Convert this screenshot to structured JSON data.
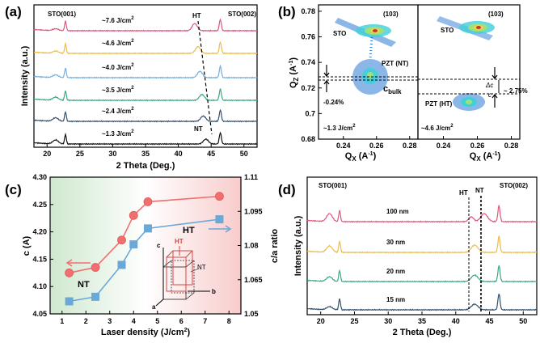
{
  "chart_data": [
    {
      "panel": "(a)",
      "type": "line",
      "xlabel": "2 Theta (Deg.)",
      "ylabel": "Intensity (a.u.)",
      "xlim": [
        18,
        52
      ],
      "xticks": [
        20,
        25,
        30,
        35,
        40,
        45,
        50
      ],
      "series": [
        {
          "name": "~1.3 J/cm2",
          "label": "~1.3 J/cm",
          "color": "#111111"
        },
        {
          "name": "~2.4 J/cm2",
          "label": "~2.4 J/cm",
          "color": "#33506b"
        },
        {
          "name": "~3.5 J/cm2",
          "label": "~3.5 J/cm",
          "color": "#3aa889"
        },
        {
          "name": "~4.0 J/cm2",
          "label": "~4.0 J/cm",
          "color": "#73aede"
        },
        {
          "name": "~4.6 J/cm2",
          "label": "~4.6 J/cm",
          "color": "#eebc4a"
        },
        {
          "name": "~7.6 J/cm2",
          "label": "~7.6 J/cm",
          "color": "#e0577a"
        }
      ],
      "annotations": {
        "sto001": "STO(001)",
        "sto002": "STO(002)",
        "ht": "HT",
        "nt": "NT"
      }
    },
    {
      "panel": "(b)",
      "type": "heatmap",
      "xlabel": "Q",
      "xlabel_sub": "X",
      "xlabel_unit": "(A",
      "xlabel_sup": "-1",
      "ylabel": "Q",
      "ylabel_sub": "Z",
      "ylabel_unit": "(A",
      "ylabel_sup": "-1",
      "ylim": [
        0.68,
        0.785
      ],
      "yticks": [
        0.68,
        0.7,
        0.72,
        0.74,
        0.76,
        0.78
      ],
      "xlim": [
        0.225,
        0.285
      ],
      "xticks": [
        0.24,
        0.26,
        0.28
      ],
      "left": {
        "label": "(103)",
        "sto": "STO",
        "pzt": "PZT (NT)",
        "cbulk": "c",
        "cbulk_sub": "bulk",
        "strain": "-0.24%",
        "fluence": "~1.3 J/cm"
      },
      "right": {
        "label": "(103)",
        "sto": "STO",
        "pzt": "PZT (HT)",
        "strain": "~ 2.75%",
        "dc": "Δc",
        "c": "c",
        "fluence": "~4.6 J/cm"
      }
    },
    {
      "panel": "(c)",
      "type": "line",
      "xlabel": "Laser density (J/cm",
      "xlabel_sup": "2",
      "ylabel": "c (A)",
      "y2label": "c/a ratio",
      "xlim": [
        0.5,
        8.5
      ],
      "xticks": [
        1,
        2,
        3,
        4,
        5,
        6,
        7,
        8
      ],
      "ylim": [
        4.05,
        4.3
      ],
      "yticks": [
        4.05,
        4.1,
        4.15,
        4.2,
        4.25,
        4.3
      ],
      "y2lim": [
        1.05,
        1.11
      ],
      "y2ticks": [
        1.05,
        1.065,
        1.08,
        1.095,
        1.11
      ],
      "series": [
        {
          "axis": "left",
          "color": "#f26f6f",
          "marker": "circle",
          "x": [
            1.3,
            2.4,
            3.5,
            4.0,
            4.6,
            7.6
          ],
          "values": [
            4.125,
            4.135,
            4.185,
            4.23,
            4.255,
            4.265
          ]
        },
        {
          "axis": "right",
          "color": "#6aa8d8",
          "marker": "square",
          "x": [
            1.3,
            2.4,
            3.5,
            4.0,
            4.6,
            7.6
          ],
          "values": [
            1.0555,
            1.0575,
            1.0715,
            1.0805,
            1.0875,
            1.0915
          ]
        }
      ],
      "annotations": {
        "ht": "HT",
        "nt": "NT",
        "cell_ht": "HT",
        "cell_nt": "NT",
        "c": "c",
        "a": "a",
        "b": "b"
      }
    },
    {
      "panel": "(d)",
      "type": "line",
      "xlabel": "2 Theta (Deg.)",
      "ylabel": "Intensity (a.u.)",
      "xlim": [
        18,
        52
      ],
      "xticks": [
        20,
        25,
        30,
        35,
        40,
        45,
        50
      ],
      "series": [
        {
          "name": "15 nm",
          "color": "#33506b"
        },
        {
          "name": "20 nm",
          "color": "#3aa889"
        },
        {
          "name": "30 nm",
          "color": "#eebc4a"
        },
        {
          "name": "100 nm",
          "color": "#e0577a"
        }
      ],
      "annotations": {
        "sto001": "STO(001)",
        "sto002": "STO(002)",
        "ht": "HT",
        "nt": "NT"
      }
    }
  ],
  "panels": {
    "a": "(a)",
    "b": "(b)",
    "c": "(c)",
    "d": "(d)"
  },
  "units": {
    "j_sup": "2"
  },
  "colors": {
    "frame": "#000000",
    "stoHot": "#c0392b",
    "heatBlue": "#2c7bd6",
    "heatCyan": "#3fd0d8",
    "heatGreen": "#9fe07a"
  }
}
